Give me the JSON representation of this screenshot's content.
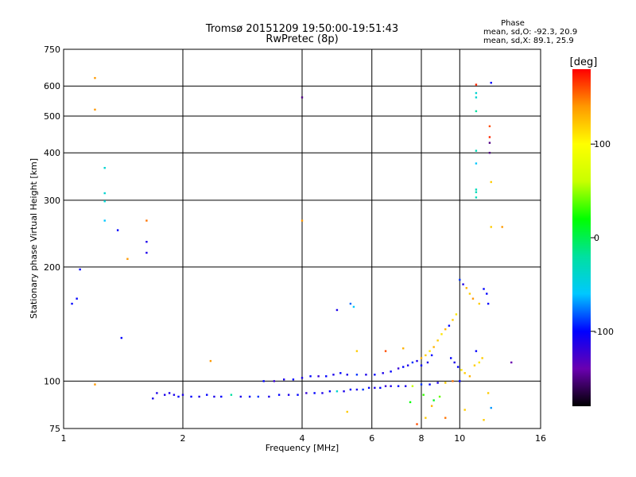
{
  "chart_data": {
    "type": "scatter",
    "title": "Tromsø 20151209 19:50:00-19:51:43",
    "subtitle": "RwPretec (8p)",
    "xlabel": "Frequency [MHz]",
    "ylabel": "Stationary phase Virtual Height [km]",
    "x_scale": "log",
    "y_scale": "log",
    "xlim": [
      1,
      16
    ],
    "ylim": [
      75,
      750
    ],
    "x_ticks": [
      1,
      2,
      4,
      6,
      8,
      10,
      16
    ],
    "y_ticks": [
      75,
      100,
      200,
      300,
      400,
      500,
      600,
      750
    ],
    "grid": true,
    "stats": {
      "heading": "Phase",
      "line_o": "mean, sd,O: -92.3, 20.9",
      "line_x": "mean, sd,X: 89.1, 25.9"
    },
    "colorbar": {
      "label": "[deg]",
      "range": [
        -180,
        180
      ],
      "ticks": [
        100,
        0,
        -100
      ],
      "colors": [
        "#000000",
        "#6a00b0",
        "#0000ff",
        "#00c8ff",
        "#00e0a0",
        "#00ff00",
        "#c8ff00",
        "#ffff00",
        "#ff9900",
        "#ff0000"
      ]
    },
    "series": [
      {
        "values": [
          [
            1.05,
            160,
            -100
          ],
          [
            1.08,
            165,
            -100
          ],
          [
            1.1,
            197,
            -100
          ],
          [
            1.2,
            630,
            140
          ],
          [
            1.2,
            520,
            140
          ],
          [
            1.2,
            98,
            140
          ],
          [
            1.27,
            365,
            -40
          ],
          [
            1.27,
            313,
            -40
          ],
          [
            1.27,
            298,
            -40
          ],
          [
            1.27,
            265,
            -60
          ],
          [
            1.37,
            250,
            -100
          ],
          [
            1.4,
            130,
            -100
          ],
          [
            1.45,
            210,
            140
          ],
          [
            1.62,
            265,
            150
          ],
          [
            1.62,
            233,
            -110
          ],
          [
            1.62,
            218,
            -110
          ],
          [
            1.68,
            90,
            -110
          ],
          [
            1.72,
            93,
            -110
          ],
          [
            1.8,
            92,
            -110
          ],
          [
            1.85,
            93,
            -110
          ],
          [
            2.35,
            113,
            140
          ],
          [
            4.0,
            560,
            -150
          ],
          [
            4.0,
            265,
            140
          ],
          [
            5.3,
            160,
            -80
          ],
          [
            5.4,
            157,
            -60
          ],
          [
            4.9,
            154,
            -110
          ],
          [
            5.5,
            120,
            120
          ],
          [
            5.2,
            83,
            120
          ],
          [
            6.5,
            120,
            160
          ],
          [
            7.2,
            122,
            130
          ],
          [
            7.8,
            77,
            160
          ],
          [
            8.2,
            80,
            120
          ],
          [
            8.5,
            86,
            130
          ],
          [
            9.2,
            80,
            150
          ],
          [
            10.3,
            84,
            120
          ],
          [
            11.5,
            79,
            120
          ],
          [
            11.8,
            93,
            120
          ],
          [
            12.0,
            85,
            -70
          ],
          [
            11.0,
            605,
            170
          ],
          [
            11.0,
            575,
            -40
          ],
          [
            11.0,
            560,
            -40
          ],
          [
            11.0,
            515,
            -20
          ],
          [
            12.0,
            612,
            -100
          ],
          [
            11.9,
            470,
            160
          ],
          [
            11.9,
            440,
            170
          ],
          [
            11.9,
            425,
            -150
          ],
          [
            11.9,
            400,
            -150
          ],
          [
            11.0,
            405,
            -30
          ],
          [
            11.0,
            375,
            -60
          ],
          [
            11.0,
            320,
            -30
          ],
          [
            11.0,
            315,
            -30
          ],
          [
            11.0,
            305,
            -30
          ],
          [
            12.0,
            335,
            120
          ],
          [
            12.0,
            255,
            120
          ],
          [
            12.8,
            255,
            140
          ],
          [
            13.5,
            112,
            -140
          ],
          [
            10.0,
            185,
            -90
          ],
          [
            10.2,
            180,
            -110
          ],
          [
            10.4,
            176,
            130
          ],
          [
            10.6,
            170,
            120
          ],
          [
            10.8,
            165,
            140
          ],
          [
            11.2,
            160,
            120
          ],
          [
            11.5,
            175,
            -100
          ],
          [
            11.7,
            170,
            -100
          ],
          [
            11.8,
            160,
            -100
          ],
          [
            9.8,
            150,
            110
          ],
          [
            9.6,
            145,
            120
          ],
          [
            9.4,
            140,
            -100
          ],
          [
            9.2,
            137,
            130
          ],
          [
            9.0,
            133,
            110
          ],
          [
            8.8,
            128,
            120
          ],
          [
            8.6,
            123,
            130
          ],
          [
            8.4,
            120,
            110
          ],
          [
            8.2,
            117,
            120
          ],
          [
            8.0,
            115,
            130
          ],
          [
            8.5,
            117,
            -100
          ],
          [
            8.3,
            112,
            -110
          ],
          [
            8.0,
            110,
            -100
          ],
          [
            7.8,
            113,
            -110
          ],
          [
            7.6,
            112,
            -90
          ],
          [
            7.4,
            110,
            -110
          ],
          [
            7.2,
            109,
            -100
          ],
          [
            7.0,
            108,
            -120
          ],
          [
            6.7,
            106,
            -100
          ],
          [
            6.4,
            105,
            -110
          ],
          [
            6.1,
            104,
            -100
          ],
          [
            5.8,
            104,
            -110
          ],
          [
            5.5,
            104,
            -90
          ],
          [
            5.2,
            104,
            -110
          ],
          [
            5.0,
            105,
            -100
          ],
          [
            4.8,
            104,
            -110
          ],
          [
            4.6,
            103,
            -100
          ],
          [
            4.4,
            103,
            -120
          ],
          [
            4.2,
            103,
            -100
          ],
          [
            4.0,
            102,
            -110
          ],
          [
            3.8,
            101,
            -100
          ],
          [
            3.6,
            101,
            -110
          ],
          [
            3.4,
            100,
            -120
          ],
          [
            3.2,
            100,
            -100
          ],
          [
            9.5,
            115,
            -100
          ],
          [
            9.7,
            112,
            -110
          ],
          [
            9.9,
            109,
            -100
          ],
          [
            10.1,
            107,
            110
          ],
          [
            10.3,
            105,
            120
          ],
          [
            10.6,
            103,
            130
          ],
          [
            10.9,
            110,
            120
          ],
          [
            11.2,
            112,
            110
          ],
          [
            11.4,
            115,
            120
          ],
          [
            11.0,
            120,
            -100
          ],
          [
            10.0,
            100,
            -100
          ],
          [
            9.6,
            100,
            150
          ],
          [
            9.2,
            99,
            120
          ],
          [
            8.8,
            99,
            -110
          ],
          [
            8.4,
            98,
            -100
          ],
          [
            8.0,
            98,
            -90
          ],
          [
            7.6,
            97,
            60
          ],
          [
            7.3,
            97,
            -110
          ],
          [
            7.0,
            97,
            -100
          ],
          [
            6.7,
            97,
            -110
          ],
          [
            6.5,
            97,
            -120
          ],
          [
            6.3,
            96,
            -100
          ],
          [
            6.1,
            96,
            -110
          ],
          [
            5.9,
            96,
            -100
          ],
          [
            5.7,
            95,
            -90
          ],
          [
            5.5,
            95,
            -110
          ],
          [
            5.3,
            95,
            -100
          ],
          [
            5.1,
            94,
            -110
          ],
          [
            4.9,
            94,
            -40
          ],
          [
            4.7,
            94,
            -100
          ],
          [
            4.5,
            93,
            -110
          ],
          [
            4.3,
            93,
            -100
          ],
          [
            4.1,
            93,
            -120
          ],
          [
            3.9,
            92,
            -100
          ],
          [
            3.7,
            92,
            -110
          ],
          [
            3.5,
            92,
            -100
          ],
          [
            3.3,
            91,
            -110
          ],
          [
            3.1,
            91,
            -90
          ],
          [
            2.95,
            91,
            -100
          ],
          [
            2.8,
            91,
            -110
          ],
          [
            2.65,
            92,
            -20
          ],
          [
            2.5,
            91,
            -100
          ],
          [
            2.4,
            91,
            -110
          ],
          [
            2.3,
            92,
            -100
          ],
          [
            2.2,
            91,
            -110
          ],
          [
            2.1,
            91,
            -100
          ],
          [
            2.0,
            92,
            -110
          ],
          [
            1.95,
            91,
            -100
          ],
          [
            1.9,
            92,
            -110
          ],
          [
            8.9,
            91,
            40
          ],
          [
            8.1,
            92,
            30
          ],
          [
            7.5,
            88,
            20
          ],
          [
            8.6,
            89,
            10
          ]
        ]
      }
    ]
  }
}
